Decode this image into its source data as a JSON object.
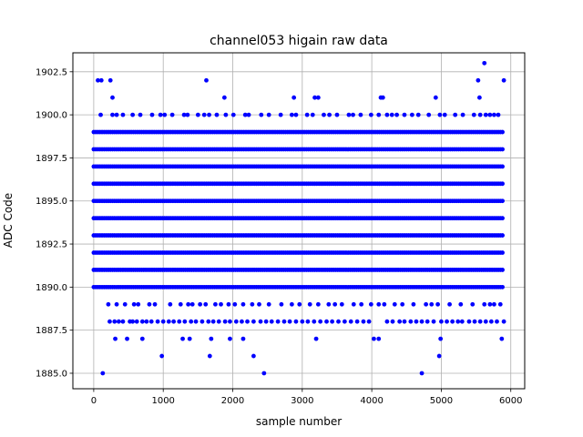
{
  "chart_data": {
    "type": "scatter",
    "title": "channel053 higain raw data",
    "xlabel": "sample number",
    "ylabel": "ADC Code",
    "xlim": [
      -300,
      6200
    ],
    "ylim": [
      1884.1,
      1903.6
    ],
    "xticks": [
      0,
      1000,
      2000,
      3000,
      4000,
      5000,
      6000
    ],
    "xtick_labels": [
      "0",
      "1000",
      "2000",
      "3000",
      "4000",
      "5000",
      "6000"
    ],
    "yticks": [
      1885.0,
      1887.5,
      1890.0,
      1892.5,
      1895.0,
      1897.5,
      1900.0,
      1902.5
    ],
    "ytick_labels": [
      "1885.0",
      "1887.5",
      "1890.0",
      "1892.5",
      "1895.0",
      "1897.5",
      "1900.0",
      "1902.5"
    ],
    "grid": true,
    "marker_color": "#0000ff",
    "n_samples": 5900,
    "dense_levels": [
      1890,
      1891,
      1892,
      1893,
      1894,
      1895,
      1896,
      1897,
      1898,
      1899
    ],
    "sparse_levels": {
      "1888": [
        230,
        300,
        360,
        420,
        520,
        560,
        620,
        700,
        760,
        830,
        920,
        1000,
        1080,
        1150,
        1230,
        1310,
        1400,
        1470,
        1560,
        1650,
        1720,
        1800,
        1890,
        1960,
        2050,
        2130,
        2210,
        2300,
        2400,
        2480,
        2560,
        2650,
        2740,
        2820,
        2910,
        3000,
        3080,
        3170,
        3260,
        3350,
        3430,
        3520,
        3610,
        3700,
        3790,
        3880,
        3960,
        4220,
        4300,
        4400,
        4470,
        4560,
        4640,
        4720,
        4800,
        4890,
        5000,
        5080,
        5160,
        5240,
        5300,
        5400,
        5480,
        5560,
        5640,
        5720,
        5800,
        5900
      ],
      "1889": [
        210,
        330,
        450,
        580,
        640,
        800,
        880,
        1100,
        1250,
        1360,
        1420,
        1530,
        1610,
        1750,
        1830,
        1940,
        2030,
        2150,
        2280,
        2380,
        2520,
        2700,
        2850,
        2960,
        3110,
        3230,
        3380,
        3470,
        3570,
        3740,
        3850,
        3990,
        4100,
        4180,
        4330,
        4440,
        4600,
        4780,
        4860,
        4950,
        5120,
        5280,
        5450,
        5620,
        5700,
        5760,
        5850
      ],
      "1887": [
        310,
        480,
        700,
        1280,
        1380,
        1690,
        1960,
        2150,
        3200,
        4030,
        4100,
        4990,
        5870
      ],
      "1886": [
        980,
        1670,
        2300,
        4970
      ],
      "1885": [
        130,
        2450,
        4720
      ],
      "1900": [
        100,
        270,
        330,
        420,
        560,
        670,
        840,
        960,
        1020,
        1130,
        1300,
        1350,
        1500,
        1590,
        1660,
        1770,
        1900,
        2010,
        2180,
        2230,
        2410,
        2520,
        2690,
        2850,
        2910,
        3070,
        3150,
        3310,
        3390,
        3500,
        3670,
        3730,
        3840,
        3990,
        4100,
        4220,
        4290,
        4360,
        4470,
        4580,
        4670,
        4820,
        4980,
        5050,
        5200,
        5310,
        5470,
        5560,
        5640,
        5700,
        5760,
        5820
      ],
      "1901": [
        270,
        1880,
        2880,
        3180,
        3230,
        4130,
        4160,
        4920,
        5550
      ],
      "1902": [
        60,
        110,
        240,
        1620,
        5530,
        5900
      ],
      "1903": [
        5620
      ]
    }
  }
}
